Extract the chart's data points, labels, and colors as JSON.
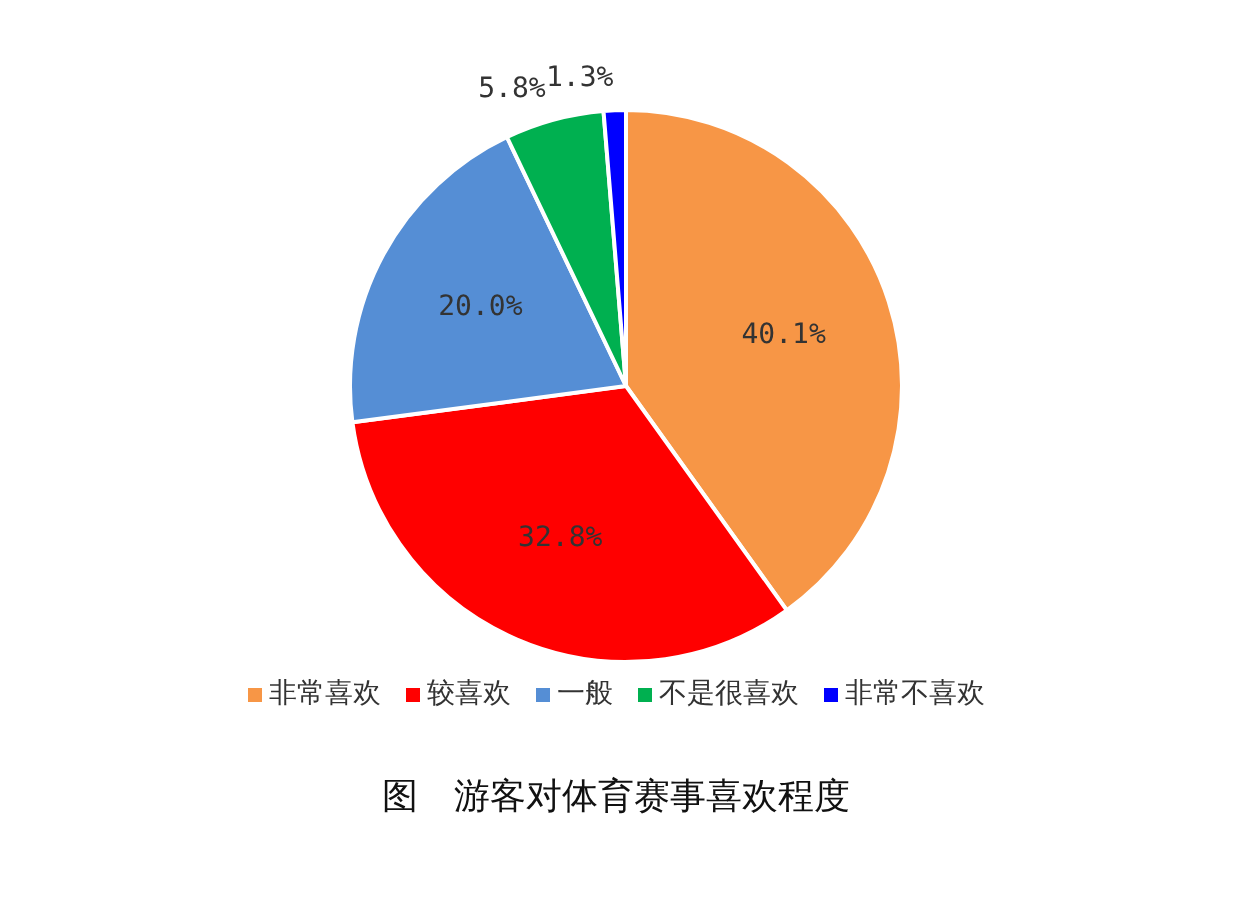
{
  "chart_data": {
    "type": "pie",
    "title": "图　游客对体育赛事喜欢程度",
    "categories": [
      "非常喜欢",
      "较喜欢",
      "一般",
      "不是很喜欢",
      "非常不喜欢"
    ],
    "values": [
      40.1,
      32.8,
      20.0,
      5.8,
      1.3
    ],
    "value_labels": [
      "40.1%",
      "32.8%",
      "20.0%",
      "5.8%",
      "1.3%"
    ],
    "colors": [
      "#f79646",
      "#ff0000",
      "#558ed5",
      "#00b050",
      "#0000ff"
    ],
    "legend": "bottom"
  }
}
